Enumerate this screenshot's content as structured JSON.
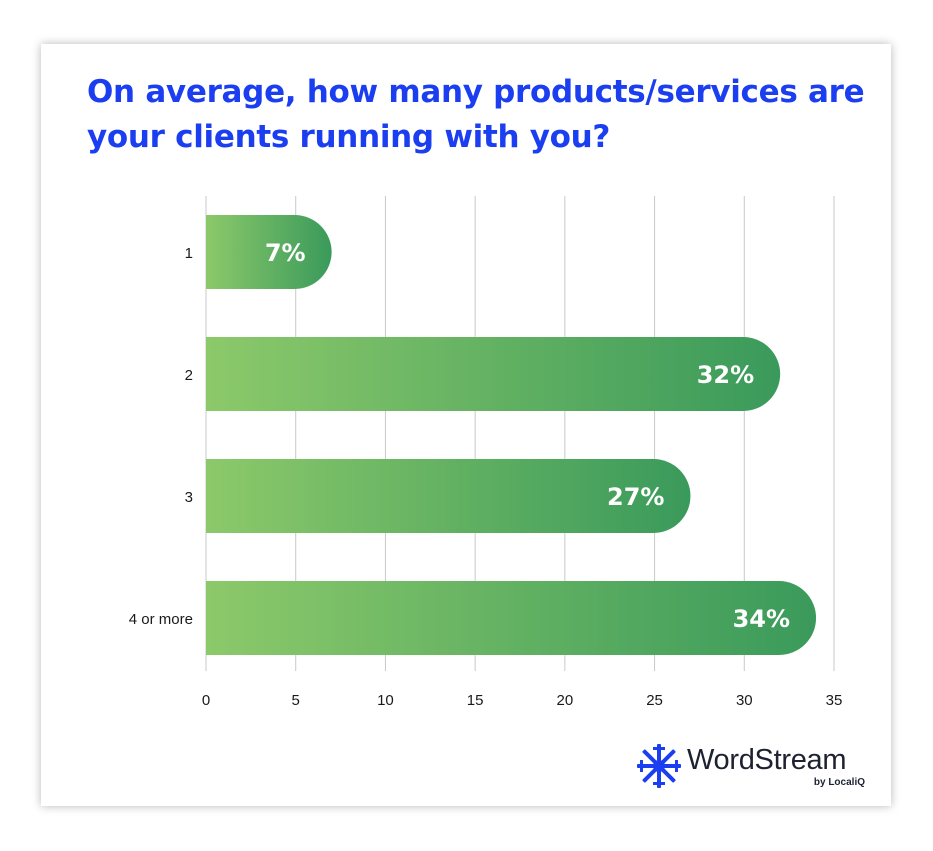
{
  "chart_data": {
    "type": "bar",
    "orientation": "horizontal",
    "title": "On average, how many products/services are your clients running with you?",
    "categories": [
      "1",
      "2",
      "3",
      "4 or more"
    ],
    "values": [
      7,
      32,
      27,
      34
    ],
    "data_labels": [
      "7%",
      "32%",
      "27%",
      "34%"
    ],
    "x_ticks": [
      "0",
      "5",
      "10",
      "15",
      "20",
      "25",
      "30",
      "35"
    ],
    "xlim": [
      0,
      35
    ],
    "grid": true,
    "bar_gradient": [
      "#8cc96a",
      "#3a9a5b"
    ]
  },
  "brand": {
    "name": "WordStream",
    "sub": "by LocaliQ",
    "color": "#1a3ef0"
  }
}
